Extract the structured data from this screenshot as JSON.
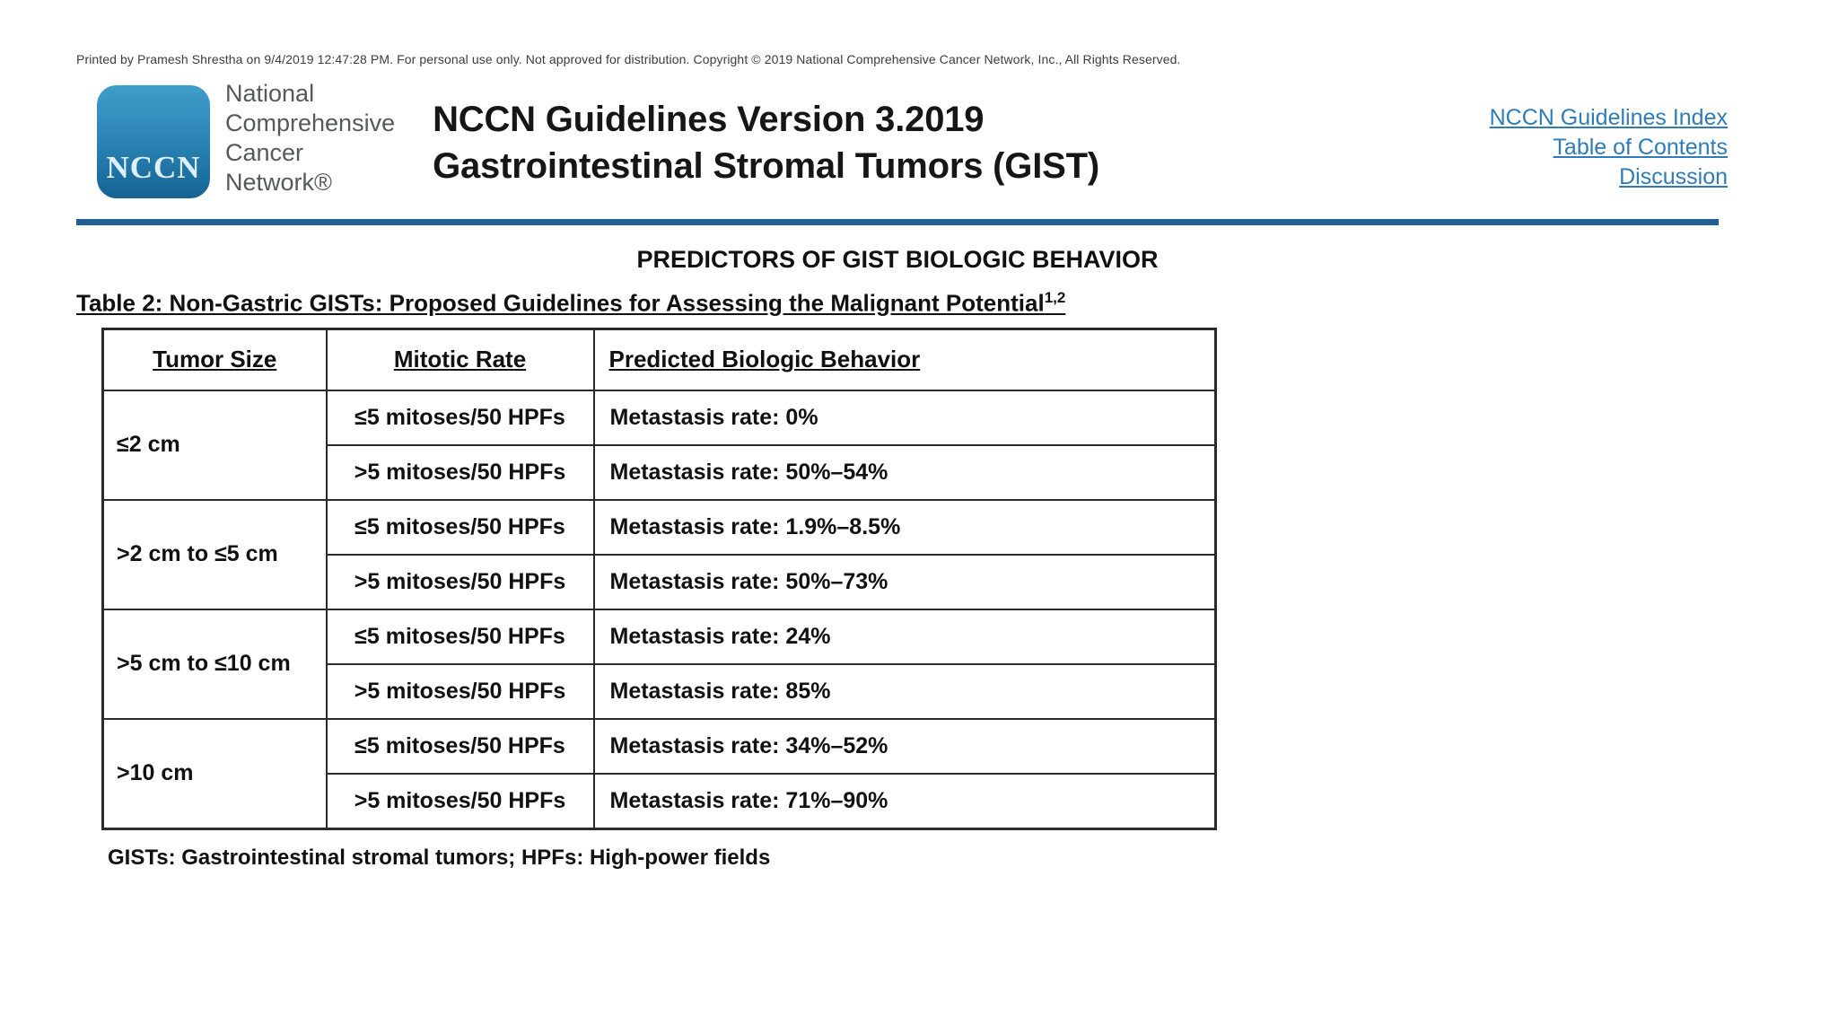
{
  "page": {
    "print_notice": "Printed by Pramesh Shrestha on 9/4/2019 12:47:28 PM. For personal use only. Not approved for distribution. Copyright © 2019 National Comprehensive Cancer Network, Inc., All Rights Reserved."
  },
  "header": {
    "logo": {
      "acronym": "NCCN",
      "org_lines": [
        "National",
        "Comprehensive",
        "Cancer",
        "Network®"
      ]
    },
    "title_line1": "NCCN Guidelines Version 3.2019",
    "title_line2": "Gastrointestinal Stromal Tumors (GIST)",
    "links": [
      {
        "label": "NCCN Guidelines Index"
      },
      {
        "label": "Table of Contents"
      },
      {
        "label": "Discussion"
      }
    ]
  },
  "section": {
    "heading": "PREDICTORS OF GIST BIOLOGIC BEHAVIOR",
    "table_title": "Table 2: Non-Gastric GISTs: Proposed Guidelines for Assessing the Malignant Potential",
    "table_title_superscript": "1,2"
  },
  "table": {
    "columns": [
      "Tumor Size",
      "Mitotic Rate",
      "Predicted Biologic Behavior"
    ],
    "groups": [
      {
        "tumor_size": "≤2 cm",
        "rows": [
          {
            "mitotic_rate": "≤5 mitoses/50 HPFs",
            "behavior": "Metastasis rate: 0%"
          },
          {
            "mitotic_rate": ">5 mitoses/50 HPFs",
            "behavior": "Metastasis rate: 50%–54%"
          }
        ]
      },
      {
        "tumor_size": ">2 cm to ≤5 cm",
        "rows": [
          {
            "mitotic_rate": "≤5 mitoses/50 HPFs",
            "behavior": "Metastasis rate: 1.9%–8.5%"
          },
          {
            "mitotic_rate": ">5 mitoses/50 HPFs",
            "behavior": "Metastasis rate: 50%–73%"
          }
        ]
      },
      {
        "tumor_size": ">5 cm to ≤10 cm",
        "rows": [
          {
            "mitotic_rate": "≤5 mitoses/50 HPFs",
            "behavior": "Metastasis rate: 24%"
          },
          {
            "mitotic_rate": ">5 mitoses/50 HPFs",
            "behavior": "Metastasis rate: 85%"
          }
        ]
      },
      {
        "tumor_size": ">10 cm",
        "rows": [
          {
            "mitotic_rate": "≤5 mitoses/50 HPFs",
            "behavior": "Metastasis rate: 34%–52%"
          },
          {
            "mitotic_rate": ">5 mitoses/50 HPFs",
            "behavior": "Metastasis rate: 71%–90%"
          }
        ]
      }
    ]
  },
  "footnote": "GISTs: Gastrointestinal stromal tumors; HPFs: High-power fields",
  "colors": {
    "link_blue": "#2f7cb8",
    "divider_blue": "#1f5f94",
    "logo_blue_top": "#3f9cca",
    "logo_blue_bottom": "#156394",
    "org_text_gray": "#57585a",
    "table_border": "#2b2b2b"
  }
}
